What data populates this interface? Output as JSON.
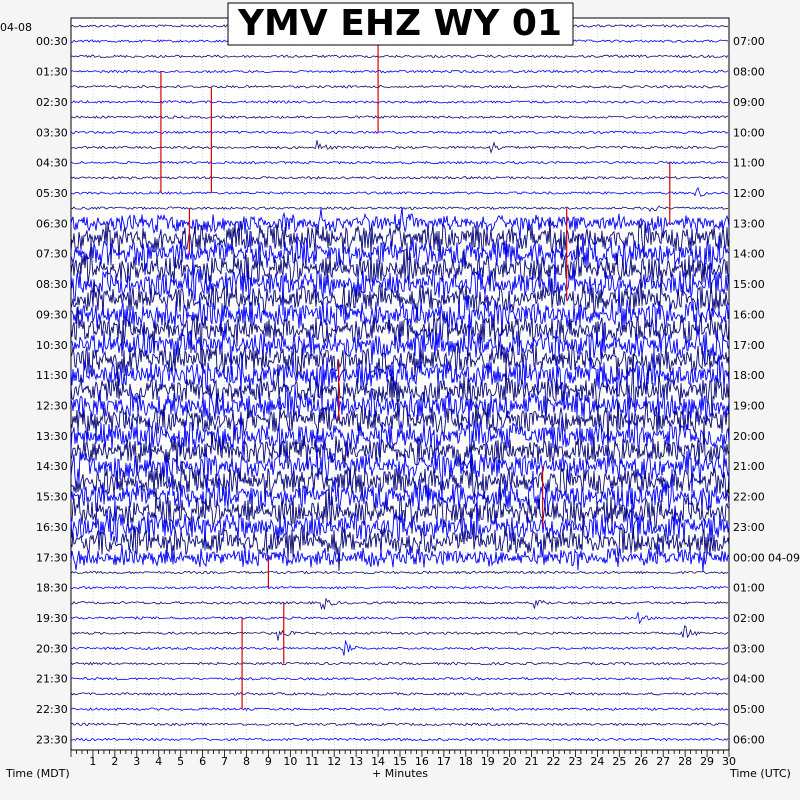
{
  "chart_data": {
    "type": "line",
    "title": "YMV EHZ WY 01",
    "xlabel": "+ Minutes",
    "ylabel_left": "Time (MDT)",
    "ylabel_right": "Time (UTC)",
    "x_ticks": [
      1,
      2,
      3,
      4,
      5,
      6,
      7,
      8,
      9,
      10,
      11,
      12,
      13,
      14,
      15,
      16,
      17,
      18,
      19,
      20,
      21,
      22,
      23,
      24,
      25,
      26,
      27,
      28,
      29,
      30
    ],
    "xlim": [
      0,
      30
    ],
    "date_left_start": "04-08",
    "date_right_rollover": "04-09",
    "rows_left": [
      "00:30",
      "01:30",
      "02:30",
      "03:30",
      "04:30",
      "05:30",
      "06:30",
      "07:30",
      "08:30",
      "09:30",
      "10:30",
      "11:30",
      "12:30",
      "13:30",
      "14:30",
      "15:30",
      "16:30",
      "17:30",
      "18:30",
      "19:30",
      "20:30",
      "21:30",
      "22:30",
      "23:30"
    ],
    "rows_right": [
      "07:00",
      "08:00",
      "09:00",
      "10:00",
      "11:00",
      "12:00",
      "13:00",
      "14:00",
      "15:00",
      "16:00",
      "17:00",
      "18:00",
      "19:00",
      "20:00",
      "21:00",
      "22:00",
      "23:00",
      "00:00",
      "01:00",
      "02:00",
      "03:00",
      "04:00",
      "05:00",
      "06:00"
    ],
    "trace_colors": [
      "#0a0a78",
      "#0000ff"
    ],
    "marker_color": "#d40000",
    "grid": true,
    "noisy_period": {
      "start": "06:30",
      "end": "17:30"
    },
    "events": [
      {
        "time": "04:00",
        "minute": 11.3
      },
      {
        "time": "04:00",
        "minute": 19.2
      },
      {
        "time": "05:30",
        "minute": 28.5
      },
      {
        "time": "06:00",
        "minute": 26.3
      },
      {
        "time": "19:00",
        "minute": 11.5
      },
      {
        "time": "19:00",
        "minute": 21.2
      },
      {
        "time": "19:30",
        "minute": 25.8
      },
      {
        "time": "20:00",
        "minute": 9.5
      },
      {
        "time": "20:30",
        "minute": 12.5
      },
      {
        "time": "20:00",
        "minute": 28.0
      }
    ],
    "markers": [
      {
        "minute": 4.1,
        "from": "01:30",
        "to": "05:30"
      },
      {
        "minute": 6.4,
        "from": "02:00",
        "to": "05:30"
      },
      {
        "minute": 14.0,
        "from": "00:30",
        "to": "03:30"
      },
      {
        "minute": 27.3,
        "from": "04:30",
        "to": "06:30"
      },
      {
        "minute": 5.4,
        "from": "06:00",
        "to": "07:30"
      },
      {
        "minute": 22.6,
        "from": "06:00",
        "to": "09:00"
      },
      {
        "minute": 12.2,
        "from": "11:00",
        "to": "13:00"
      },
      {
        "minute": 21.5,
        "from": "14:30",
        "to": "16:30"
      },
      {
        "minute": 9.0,
        "from": "17:30",
        "to": "18:30"
      },
      {
        "minute": 9.7,
        "from": "19:00",
        "to": "21:00"
      },
      {
        "minute": 7.8,
        "from": "19:30",
        "to": "22:30"
      }
    ]
  }
}
